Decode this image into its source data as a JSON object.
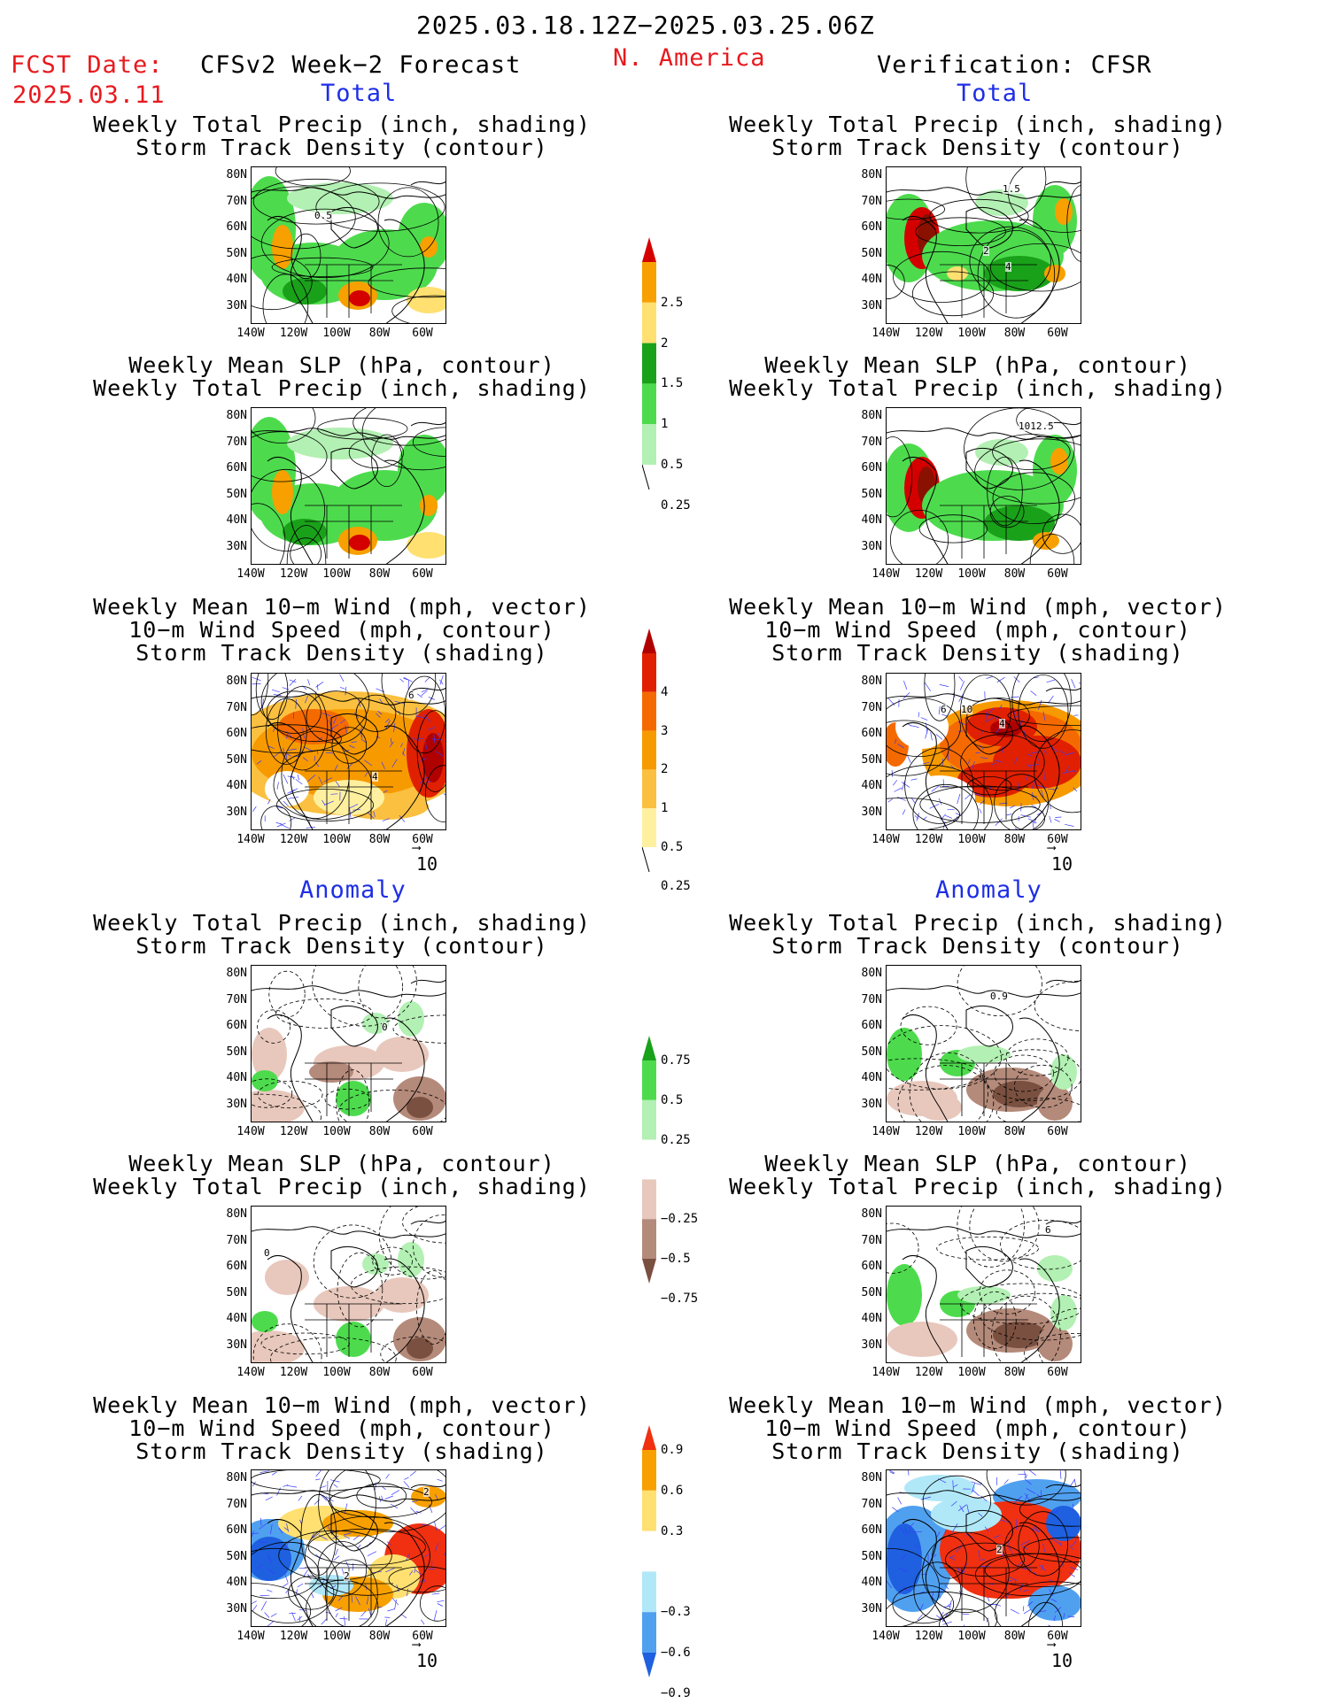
{
  "header": {
    "period": "2025.03.18.12Z−2025.03.25.06Z",
    "fcst_label": "FCST Date:",
    "fcst_date": "2025.03.11",
    "left_title": "CFSv2 Week−2 Forecast",
    "region": "N. America",
    "right_title": "Verification: CFSR"
  },
  "sections": {
    "total": "Total",
    "anomaly": "Anomaly"
  },
  "titles": {
    "precip_track": [
      "Weekly Total Precip (inch, shading)",
      "Storm Track Density (contour)"
    ],
    "slp_precip": [
      "Weekly Mean SLP (hPa, contour)",
      "Weekly Total Precip (inch, shading)"
    ],
    "wind_track": [
      "Weekly Mean 10−m Wind (mph, vector)",
      "10−m Wind Speed (mph, contour)",
      "Storm Track Density (shading)"
    ]
  },
  "axes": {
    "lat": [
      "80N",
      "70N",
      "60N",
      "50N",
      "40N",
      "30N"
    ],
    "lon": [
      "140W",
      "120W",
      "100W",
      "80W",
      "60W"
    ]
  },
  "vector_scale": "10",
  "colorbars": [
    {
      "labels": [
        "2.5",
        "2",
        "1.5",
        "1",
        "0.5",
        "0.25"
      ],
      "colors": [
        "#d40000",
        "#f7a000",
        "#ffe070",
        "#1aa11a",
        "#4ddb4d",
        "#b3f0b3"
      ]
    },
    {
      "labels": [
        "4",
        "3",
        "2",
        "1",
        "0.5",
        "0.25"
      ],
      "colors": [
        "#b00000",
        "#e02000",
        "#f56a00",
        "#f79a00",
        "#fbc040",
        "#fff0a0"
      ]
    },
    {
      "labels": [
        "0.75",
        "0.5",
        "0.25",
        "−0.25",
        "−0.5",
        "−0.75"
      ],
      "colors": [
        "#1aa11a",
        "#4ddb4d",
        "#b3f0b3",
        "#ffffff",
        "#e8c8bc",
        "#b48a7a",
        "#7a5040"
      ]
    },
    {
      "labels": [
        "0.9",
        "0.6",
        "0.3",
        "−0.3",
        "−0.6",
        "−0.9"
      ],
      "colors": [
        "#f03010",
        "#f7a000",
        "#ffe070",
        "#ffffff",
        "#b0e8f8",
        "#50a0f0",
        "#1e60e0"
      ]
    }
  ],
  "contour_labels": {
    "l1": "0.5",
    "r1": "1.5",
    "r1b": "2",
    "r1c": "4",
    "r2": "1012.5",
    "l3": "6",
    "l3b": "4",
    "r3": "6",
    "r3b": "10",
    "r3c": "4",
    "l4": "0",
    "r4": "0.9",
    "l5": "0",
    "r5": "6",
    "l6": "2",
    "l6b": "2",
    "r6": "2"
  }
}
